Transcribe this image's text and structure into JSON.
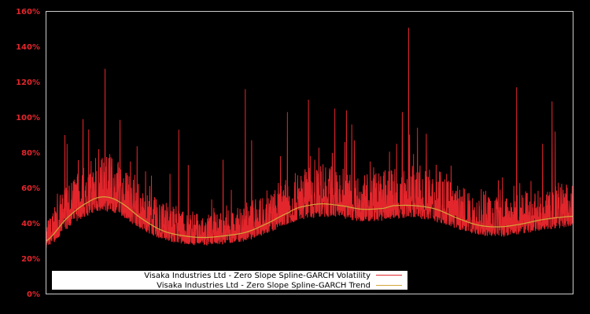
{
  "chart_data": {
    "type": "line",
    "title": "",
    "xlabel": "",
    "ylabel": "",
    "ylim": [
      0,
      160
    ],
    "yticks": [
      "0%",
      "20%",
      "40%",
      "60%",
      "80%",
      "100%",
      "120%",
      "140%",
      "160%"
    ],
    "ytick_values": [
      0,
      20,
      40,
      60,
      80,
      100,
      120,
      140,
      160
    ],
    "grid": false,
    "legend_position": "lower-left inside",
    "background": "#000000",
    "axis_color": "#cccccc",
    "tick_label_color": "#e2262c",
    "x_range": [
      0,
      1
    ],
    "series": [
      {
        "name": "Visaka Industries Ltd - Zero Slope Spline-GARCH Volatility",
        "color": "#e2262c",
        "description": "Noisy daily volatility series fluctuating above the trend with frequent spikes",
        "notable_spikes": [
          {
            "x": 0.035,
            "y": 59
          },
          {
            "x": 0.036,
            "y": 58
          },
          {
            "x": 0.036,
            "y": 90
          },
          {
            "x": 0.04,
            "y": 85
          },
          {
            "x": 0.06,
            "y": 68
          },
          {
            "x": 0.07,
            "y": 99
          },
          {
            "x": 0.094,
            "y": 77
          },
          {
            "x": 0.1,
            "y": 82
          },
          {
            "x": 0.112,
            "y": 127.5
          },
          {
            "x": 0.145,
            "y": 58
          },
          {
            "x": 0.16,
            "y": 75
          },
          {
            "x": 0.2,
            "y": 67
          },
          {
            "x": 0.235,
            "y": 68
          },
          {
            "x": 0.252,
            "y": 93
          },
          {
            "x": 0.27,
            "y": 73
          },
          {
            "x": 0.336,
            "y": 76
          },
          {
            "x": 0.378,
            "y": 116
          },
          {
            "x": 0.39,
            "y": 87
          },
          {
            "x": 0.445,
            "y": 78
          },
          {
            "x": 0.458,
            "y": 103
          },
          {
            "x": 0.498,
            "y": 110
          },
          {
            "x": 0.51,
            "y": 76
          },
          {
            "x": 0.548,
            "y": 105
          },
          {
            "x": 0.57,
            "y": 104
          },
          {
            "x": 0.58,
            "y": 96
          },
          {
            "x": 0.665,
            "y": 85
          },
          {
            "x": 0.676,
            "y": 103
          },
          {
            "x": 0.688,
            "y": 150.7
          },
          {
            "x": 0.72,
            "y": 69
          },
          {
            "x": 0.76,
            "y": 68
          },
          {
            "x": 0.792,
            "y": 60
          },
          {
            "x": 0.83,
            "y": 58
          },
          {
            "x": 0.866,
            "y": 66
          },
          {
            "x": 0.893,
            "y": 117
          },
          {
            "x": 0.92,
            "y": 64
          },
          {
            "x": 0.942,
            "y": 85
          },
          {
            "x": 0.96,
            "y": 109
          },
          {
            "x": 0.966,
            "y": 92
          },
          {
            "x": 0.972,
            "y": 63
          }
        ],
        "baseline_noise": {
          "floor_offset": -6,
          "amplitude": 16,
          "seed": 7
        }
      },
      {
        "name": "Visaka Industries Ltd - Zero Slope Spline-GARCH Trend",
        "color": "#d4a63a",
        "x": [
          0.0,
          0.04,
          0.08,
          0.11,
          0.14,
          0.18,
          0.22,
          0.26,
          0.3,
          0.34,
          0.38,
          0.42,
          0.46,
          0.48,
          0.52,
          0.56,
          0.6,
          0.64,
          0.66,
          0.7,
          0.74,
          0.78,
          0.82,
          0.86,
          0.9,
          0.94,
          0.98,
          1.0
        ],
        "values": [
          30,
          43,
          52,
          55,
          52,
          43,
          36,
          33,
          32,
          33,
          35,
          40,
          46,
          49,
          51,
          50,
          48,
          48.5,
          50,
          50,
          48,
          43,
          39,
          38,
          39.5,
          42,
          43.5,
          44
        ]
      }
    ]
  },
  "legend": {
    "items": [
      {
        "label": "Visaka Industries Ltd - Zero Slope Spline-GARCH Volatility",
        "color": "#e2262c"
      },
      {
        "label": "Visaka Industries Ltd - Zero Slope Spline-GARCH Trend",
        "color": "#d4a63a"
      }
    ]
  }
}
